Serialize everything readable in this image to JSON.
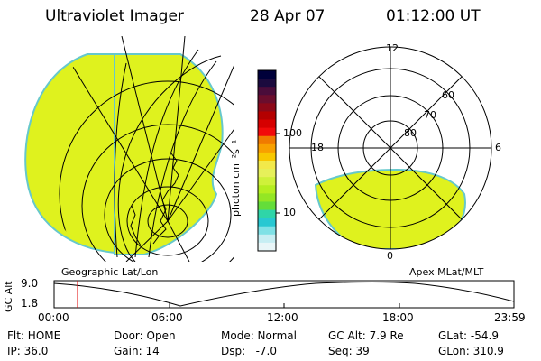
{
  "header": {
    "instrument": "Ultraviolet Imager",
    "date": "28 Apr 07",
    "time": "01:12:00 UT"
  },
  "colorbar": {
    "unit_label": "photon cm⁻²s⁻¹",
    "tick_labels": [
      "100",
      "10"
    ],
    "colors": [
      "#00003a",
      "#1b0a3e",
      "#4a0c3a",
      "#6b0d2d",
      "#8d0818",
      "#b40000",
      "#d60000",
      "#f20a0a",
      "#f07a00",
      "#f8a000",
      "#f8c800",
      "#f2e94a",
      "#e6f05a",
      "#cff13a",
      "#b5ee20",
      "#94e624",
      "#64dd3a",
      "#2fd5a8",
      "#28c8d2",
      "#7fe1e6",
      "#c7eef3",
      "#e9f6f8"
    ]
  },
  "left_panel": {
    "label": "Geographic Lat/Lon",
    "fill_color": "#dff21e",
    "edge_color": "#66c8cc"
  },
  "right_panel": {
    "label": "Apex MLat/MLT",
    "mlt_labels": [
      "12",
      "18",
      "6",
      "0"
    ],
    "mlat_labels": [
      "60",
      "70",
      "80"
    ],
    "fill_color": "#dff21e",
    "edge_color": "#66c8cc"
  },
  "altitude_plot": {
    "axis_label": "GC Alt",
    "y_ticks": [
      "9.0",
      "1.8"
    ],
    "x_ticks": [
      "00:00",
      "06:00",
      "12:00",
      "18:00",
      "23:59"
    ],
    "cursor_color": "#e00000"
  },
  "footer": {
    "flt": "Flt: HOME",
    "ip": "IP: 36.0",
    "door": "Door: Open",
    "gain": "Gain: 14",
    "mode": "Mode: Normal",
    "dsp": "Dsp:   -7.0",
    "gc_alt": "GC Alt: 7.9 Re",
    "seq": "Seq: 39",
    "glat": "GLat: -54.9",
    "glon": "GLon: 310.9"
  }
}
